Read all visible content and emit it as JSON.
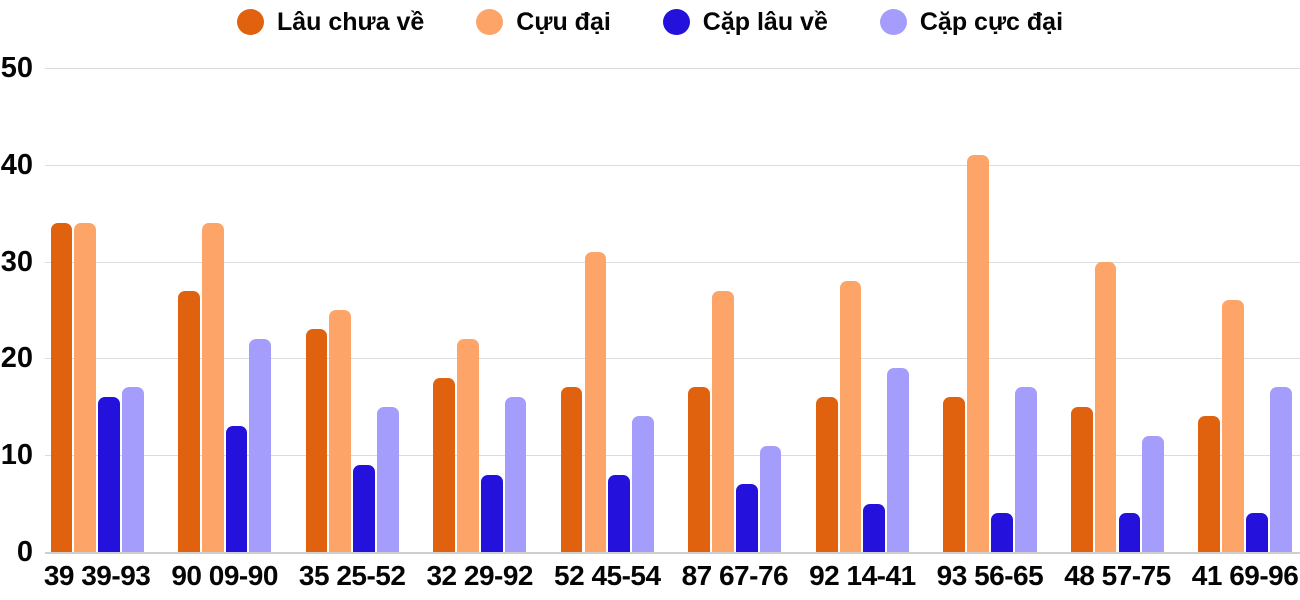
{
  "chart_data": {
    "type": "bar",
    "title": "",
    "xlabel": "",
    "ylabel": "",
    "categories": [
      "39 39-93",
      "90 09-90",
      "35 25-52",
      "32 29-92",
      "52 45-54",
      "87 67-76",
      "92 14-41",
      "93 56-65",
      "48 57-75",
      "41 69-96"
    ],
    "series": [
      {
        "name": "Lâu chưa về",
        "color": "#e0620f",
        "values": [
          34,
          27,
          23,
          18,
          17,
          17,
          16,
          16,
          15,
          14
        ]
      },
      {
        "name": "Cựu đại",
        "color": "#fda469",
        "values": [
          34,
          34,
          25,
          22,
          31,
          27,
          28,
          41,
          30,
          26
        ]
      },
      {
        "name": "Cặp lâu về",
        "color": "#2411dc",
        "values": [
          16,
          13,
          9,
          8,
          8,
          7,
          5,
          4,
          4,
          4
        ]
      },
      {
        "name": "Cặp cực đại",
        "color": "#a49dfb",
        "values": [
          17,
          22,
          15,
          16,
          14,
          11,
          19,
          17,
          12,
          17
        ]
      }
    ],
    "y_ticks": [
      0,
      10,
      20,
      30,
      40,
      50
    ],
    "ylim": [
      0,
      50
    ],
    "grid": true,
    "legend_position": "top",
    "background_color": "#ffffff",
    "gridline_color": "#dcdcdc",
    "text_color": "#050505"
  }
}
